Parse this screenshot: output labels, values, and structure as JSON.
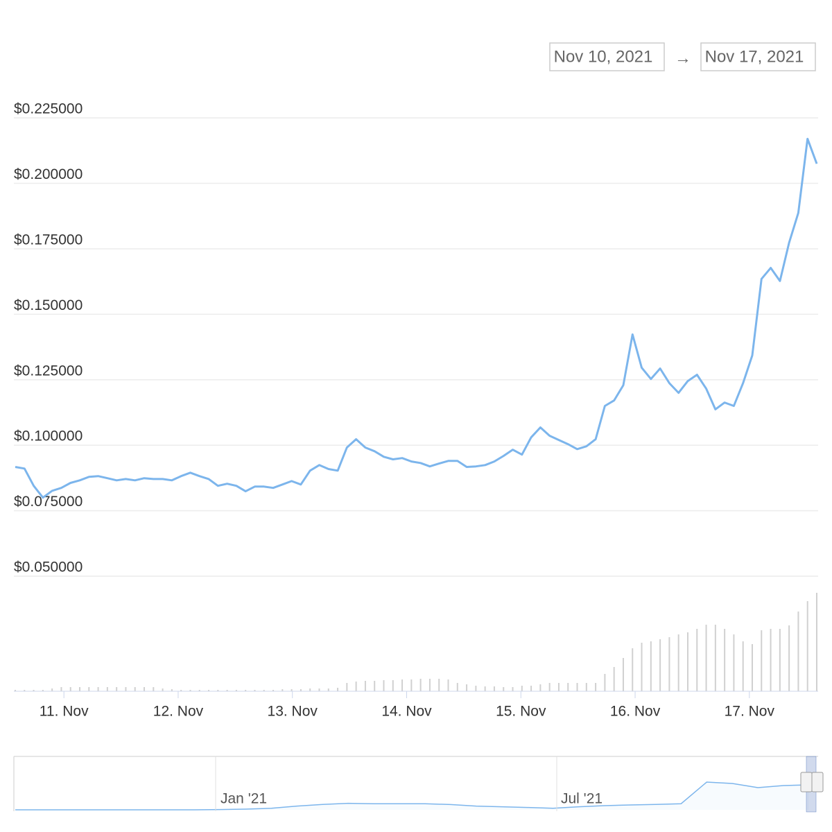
{
  "chart_data": {
    "type": "line",
    "date_from": "Nov 10, 2021",
    "date_arrow": "→",
    "date_to": "Nov 17, 2021",
    "xlim": [
      10.574,
      17.602
    ],
    "xticks": [
      {
        "value": 11,
        "label": "11. Nov"
      },
      {
        "value": 12,
        "label": "12. Nov"
      },
      {
        "value": 13,
        "label": "13. Nov"
      },
      {
        "value": 14,
        "label": "14. Nov"
      },
      {
        "value": 15,
        "label": "15. Nov"
      },
      {
        "value": 16,
        "label": "16. Nov"
      },
      {
        "value": 17,
        "label": "17. Nov"
      }
    ],
    "ylim": [
      0.05,
      0.225
    ],
    "yticks": [
      {
        "value": 0.225,
        "label": "$0.225000"
      },
      {
        "value": 0.2,
        "label": "$0.200000"
      },
      {
        "value": 0.175,
        "label": "$0.175000"
      },
      {
        "value": 0.15,
        "label": "$0.150000"
      },
      {
        "value": 0.125,
        "label": "$0.125000"
      },
      {
        "value": 0.1,
        "label": "$0.100000"
      },
      {
        "value": 0.075,
        "label": "$0.075000"
      },
      {
        "value": 0.05,
        "label": "$0.050000"
      }
    ],
    "grid": true,
    "color": "#7cb5ec",
    "values": [
      0.0917,
      0.0911,
      0.0845,
      0.08,
      0.0826,
      0.0837,
      0.0856,
      0.0866,
      0.0879,
      0.0882,
      0.0874,
      0.0866,
      0.0871,
      0.0866,
      0.0874,
      0.0871,
      0.0871,
      0.0866,
      0.0882,
      0.0895,
      0.0882,
      0.0871,
      0.0845,
      0.0853,
      0.0845,
      0.0824,
      0.0842,
      0.0842,
      0.0837,
      0.085,
      0.0863,
      0.085,
      0.0903,
      0.0924,
      0.0909,
      0.0903,
      0.0991,
      0.1023,
      0.0991,
      0.0977,
      0.0956,
      0.0946,
      0.0951,
      0.0938,
      0.0932,
      0.0919,
      0.093,
      0.094,
      0.094,
      0.0917,
      0.0919,
      0.0924,
      0.0938,
      0.0959,
      0.0983,
      0.0964,
      0.103,
      0.1068,
      0.1036,
      0.102,
      0.1004,
      0.0985,
      0.0996,
      0.1023,
      0.115,
      0.1171,
      0.1229,
      0.1423,
      0.1296,
      0.1253,
      0.1293,
      0.1237,
      0.12,
      0.1245,
      0.1269,
      0.1216,
      0.1137,
      0.1163,
      0.115,
      0.1237,
      0.1343,
      0.1635,
      0.1677,
      0.1627,
      0.1773,
      0.1887,
      0.217,
      0.2075
    ],
    "volume_color": "#d0d0d0",
    "volume": [
      2,
      2,
      2,
      2,
      4,
      6,
      6,
      6,
      6,
      6,
      6,
      6,
      6,
      6,
      6,
      6,
      4,
      3,
      2,
      2,
      2,
      2,
      2,
      2,
      2,
      2,
      2,
      2,
      2,
      3,
      3,
      3,
      4,
      4,
      4,
      5,
      12,
      14,
      15,
      15,
      16,
      16,
      17,
      17,
      18,
      18,
      18,
      17,
      12,
      10,
      8,
      7,
      7,
      6,
      6,
      8,
      8,
      10,
      12,
      12,
      12,
      12,
      12,
      12,
      25,
      35,
      48,
      62,
      70,
      72,
      75,
      78,
      82,
      85,
      90,
      96,
      96,
      90,
      82,
      72,
      68,
      88,
      90,
      90,
      95,
      115,
      130,
      142
    ],
    "navigator": {
      "labels": [
        "Jan '21",
        "Jul '21"
      ],
      "values": [
        0,
        0,
        0,
        0,
        0,
        0,
        0,
        0,
        0.002,
        0.005,
        0.011,
        0.027,
        0.039,
        0.047,
        0.044,
        0.044,
        0.044,
        0.038,
        0.027,
        0.022,
        0.017,
        0.011,
        0.022,
        0.03,
        0.035,
        0.039,
        0.044,
        0.2,
        0.19,
        0.16,
        0.175,
        0.18
      ]
    }
  }
}
